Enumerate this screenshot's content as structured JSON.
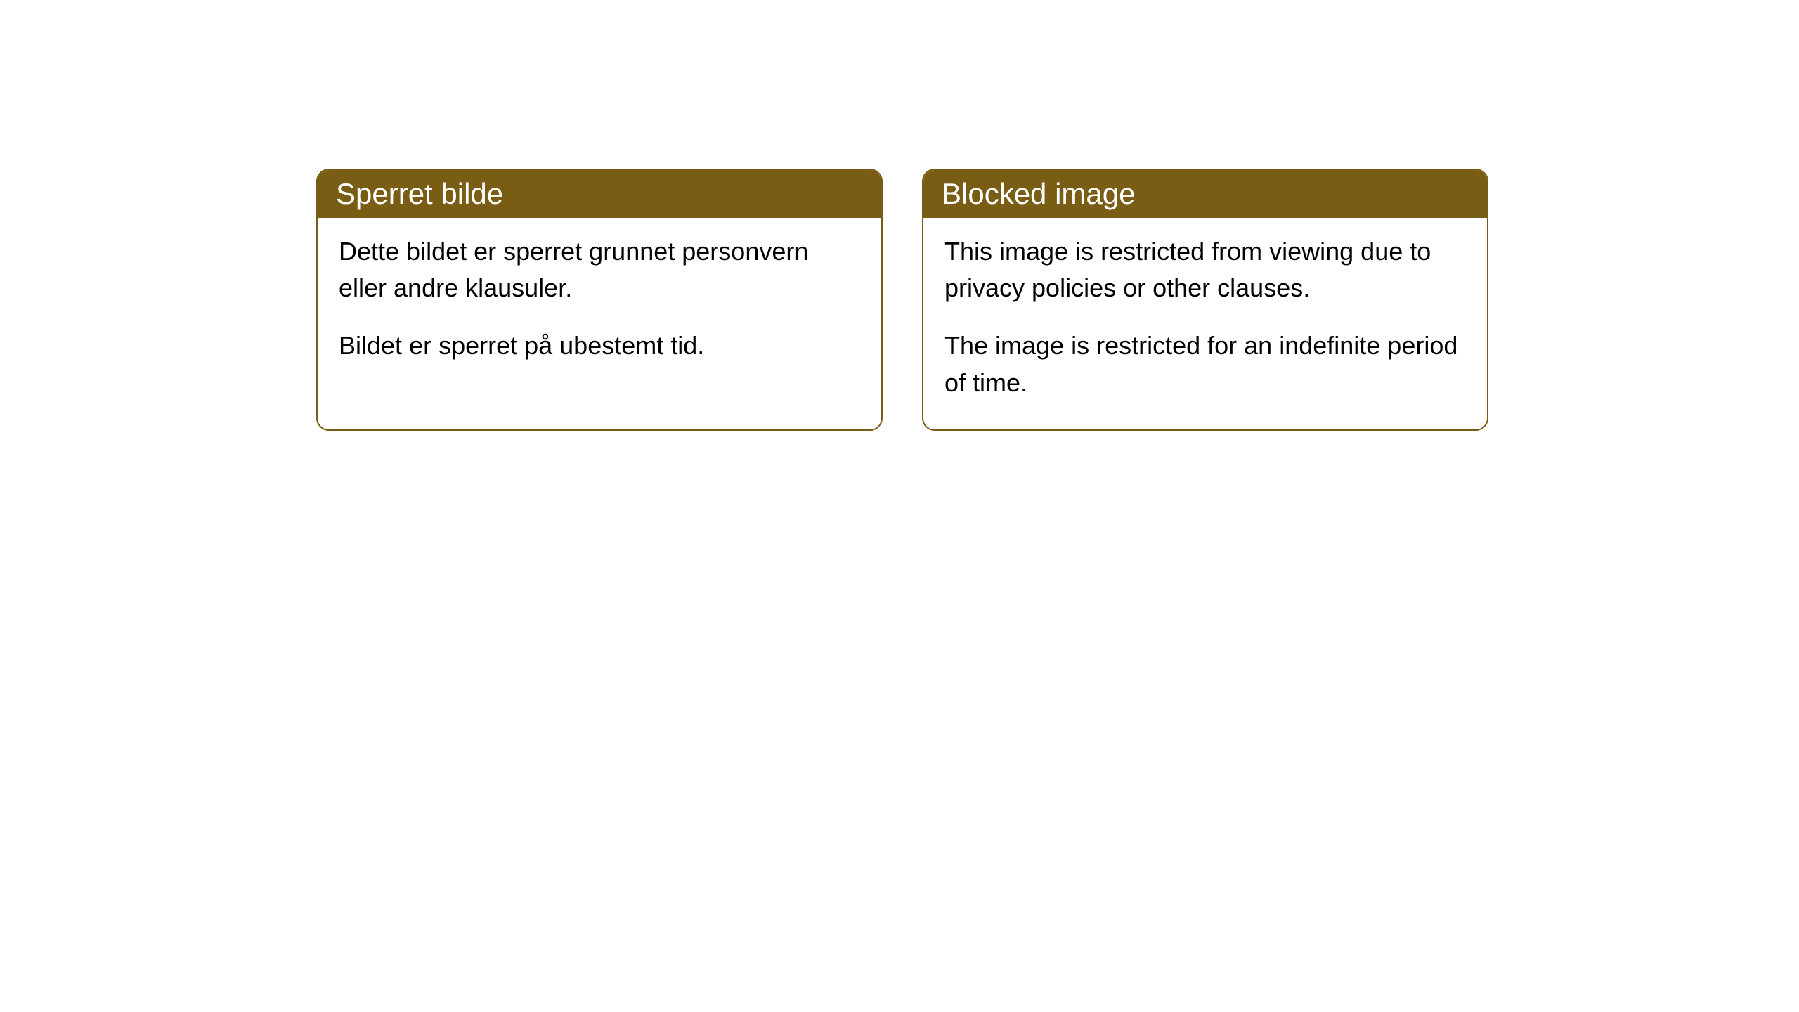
{
  "cards": [
    {
      "title": "Sperret bilde",
      "paragraph1": "Dette bildet er sperret grunnet personvern eller andre klausuler.",
      "paragraph2": "Bildet er sperret på ubestemt tid."
    },
    {
      "title": "Blocked image",
      "paragraph1": "This image is restricted from viewing due to privacy policies or other clauses.",
      "paragraph2": "The image is restricted for an indefinite period of time."
    }
  ],
  "styling": {
    "header_background": "#7a5d14",
    "header_text_color": "#ffffff",
    "border_color": "#7a5d14",
    "card_background": "#ffffff",
    "body_text_color": "#000000",
    "border_radius": 18,
    "title_fontsize": 42,
    "body_fontsize": 36
  }
}
